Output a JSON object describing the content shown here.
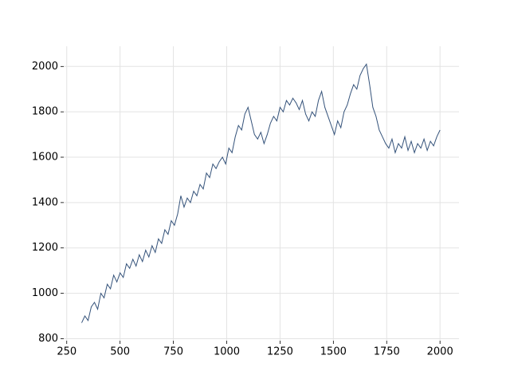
{
  "chart_data": {
    "type": "line",
    "x": [
      320,
      335,
      350,
      365,
      380,
      395,
      410,
      425,
      440,
      455,
      470,
      485,
      500,
      515,
      530,
      545,
      560,
      575,
      590,
      605,
      620,
      635,
      650,
      665,
      680,
      695,
      710,
      725,
      740,
      755,
      770,
      785,
      800,
      815,
      830,
      845,
      860,
      875,
      890,
      905,
      920,
      935,
      950,
      965,
      980,
      995,
      1010,
      1025,
      1040,
      1055,
      1070,
      1085,
      1100,
      1115,
      1130,
      1145,
      1160,
      1175,
      1190,
      1205,
      1220,
      1235,
      1250,
      1265,
      1280,
      1295,
      1310,
      1325,
      1340,
      1355,
      1370,
      1385,
      1400,
      1415,
      1430,
      1445,
      1460,
      1475,
      1490,
      1505,
      1520,
      1535,
      1550,
      1565,
      1580,
      1595,
      1610,
      1625,
      1640,
      1655,
      1670,
      1685,
      1700,
      1715,
      1730,
      1745,
      1760,
      1775,
      1790,
      1805,
      1820,
      1835,
      1850,
      1865,
      1880,
      1895,
      1910,
      1925,
      1940,
      1955,
      1970,
      1985,
      2000
    ],
    "series": [
      {
        "color": "#34527a",
        "values": [
          870,
          900,
          880,
          940,
          960,
          930,
          1000,
          980,
          1040,
          1020,
          1080,
          1050,
          1090,
          1070,
          1130,
          1110,
          1150,
          1120,
          1170,
          1140,
          1190,
          1160,
          1210,
          1180,
          1240,
          1220,
          1280,
          1260,
          1320,
          1300,
          1350,
          1430,
          1380,
          1420,
          1400,
          1450,
          1430,
          1480,
          1460,
          1530,
          1510,
          1570,
          1550,
          1580,
          1600,
          1570,
          1640,
          1620,
          1690,
          1740,
          1720,
          1790,
          1820,
          1760,
          1700,
          1680,
          1710,
          1660,
          1700,
          1750,
          1780,
          1760,
          1820,
          1800,
          1850,
          1830,
          1860,
          1840,
          1810,
          1850,
          1790,
          1760,
          1800,
          1780,
          1850,
          1890,
          1820,
          1780,
          1740,
          1700,
          1760,
          1730,
          1800,
          1830,
          1880,
          1920,
          1900,
          1960,
          1990,
          2010,
          1920,
          1820,
          1780,
          1720,
          1690,
          1660,
          1640,
          1680,
          1620,
          1660,
          1640,
          1690,
          1630,
          1670,
          1620,
          1660,
          1640,
          1680,
          1630,
          1670,
          1650,
          1690,
          1720
        ]
      }
    ],
    "xlim": [
      236,
      2089
    ],
    "ylim": [
      791,
      2089
    ],
    "xticks": [
      250,
      500,
      750,
      1000,
      1250,
      1500,
      1750,
      2000
    ],
    "yticks": [
      800,
      1000,
      1200,
      1400,
      1600,
      1800,
      2000
    ],
    "grid": true
  }
}
